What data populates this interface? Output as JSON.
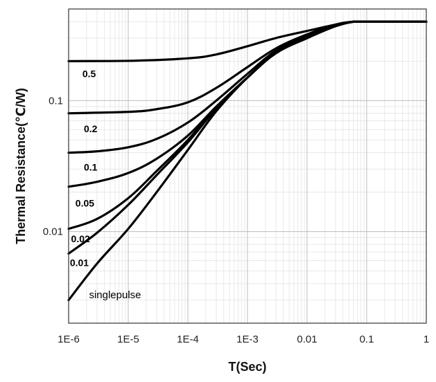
{
  "chart_data": {
    "type": "line",
    "xscale": "log",
    "yscale": "log",
    "xlabel": "T(Sec)",
    "ylabel": "Thermal Resistance(℃/W)",
    "xlim": [
      1e-06,
      1
    ],
    "ylim": [
      0.002,
      0.5
    ],
    "grid": true,
    "x_ticks": [
      {
        "value": 1e-06,
        "label": "1E-6"
      },
      {
        "value": 1e-05,
        "label": "1E-5"
      },
      {
        "value": 0.0001,
        "label": "1E-4"
      },
      {
        "value": 0.001,
        "label": "1E-3"
      },
      {
        "value": 0.01,
        "label": "0.01"
      },
      {
        "value": 0.1,
        "label": "0.1"
      },
      {
        "value": 1,
        "label": "1"
      }
    ],
    "y_ticks": [
      {
        "value": 0.01,
        "label": "0.01"
      },
      {
        "value": 0.1,
        "label": "0.1"
      }
    ],
    "series": [
      {
        "name": "0.5",
        "x": [
          1e-06,
          1e-05,
          0.0001,
          0.0003,
          0.001,
          0.003,
          0.01,
          0.03,
          0.06,
          0.1,
          1
        ],
        "y": [
          0.2,
          0.201,
          0.21,
          0.225,
          0.26,
          0.3,
          0.34,
          0.38,
          0.4,
          0.4,
          0.4
        ]
      },
      {
        "name": "0.2",
        "x": [
          1e-06,
          1e-05,
          3e-05,
          0.0001,
          0.0003,
          0.001,
          0.003,
          0.01,
          0.03,
          0.06,
          0.1,
          1
        ],
        "y": [
          0.08,
          0.082,
          0.086,
          0.097,
          0.125,
          0.18,
          0.25,
          0.32,
          0.38,
          0.4,
          0.4,
          0.4
        ]
      },
      {
        "name": "0.1",
        "x": [
          1e-06,
          3e-06,
          1e-05,
          3e-05,
          0.0001,
          0.0003,
          0.001,
          0.003,
          0.01,
          0.03,
          0.06,
          0.1,
          1
        ],
        "y": [
          0.04,
          0.041,
          0.044,
          0.051,
          0.068,
          0.1,
          0.16,
          0.24,
          0.31,
          0.37,
          0.4,
          0.4,
          0.4
        ]
      },
      {
        "name": "0.05",
        "x": [
          1e-06,
          3e-06,
          1e-05,
          3e-05,
          0.0001,
          0.0003,
          0.001,
          0.003,
          0.01,
          0.03,
          0.06,
          0.1,
          1
        ],
        "y": [
          0.022,
          0.024,
          0.028,
          0.036,
          0.054,
          0.09,
          0.15,
          0.23,
          0.3,
          0.37,
          0.4,
          0.4,
          0.4
        ]
      },
      {
        "name": "0.02",
        "x": [
          1e-06,
          3e-06,
          1e-05,
          3e-05,
          0.0001,
          0.0003,
          0.001,
          0.003,
          0.01,
          0.03,
          0.06,
          0.1,
          1
        ],
        "y": [
          0.0105,
          0.0125,
          0.018,
          0.029,
          0.05,
          0.088,
          0.15,
          0.23,
          0.3,
          0.37,
          0.4,
          0.4,
          0.4
        ]
      },
      {
        "name": "0.01",
        "x": [
          1e-06,
          3e-06,
          1e-05,
          3e-05,
          0.0001,
          0.0003,
          0.001,
          0.003,
          0.01,
          0.03,
          0.06,
          0.1,
          1
        ],
        "y": [
          0.0068,
          0.0098,
          0.016,
          0.027,
          0.048,
          0.087,
          0.15,
          0.23,
          0.3,
          0.37,
          0.4,
          0.4,
          0.4
        ]
      },
      {
        "name": "singlepulse",
        "x": [
          1e-06,
          3e-06,
          1e-05,
          3e-05,
          0.0001,
          0.0003,
          0.001,
          0.003,
          0.01,
          0.03,
          0.06,
          0.1,
          1
        ],
        "y": [
          0.003,
          0.0057,
          0.0105,
          0.02,
          0.042,
          0.083,
          0.15,
          0.23,
          0.3,
          0.37,
          0.4,
          0.4,
          0.4
        ]
      }
    ],
    "annotations": [
      {
        "text": "0.5",
        "x": 1.7e-06,
        "y": 0.16,
        "style": "bold"
      },
      {
        "text": "0.2",
        "x": 1.8e-06,
        "y": 0.061,
        "style": "bold"
      },
      {
        "text": "0.1",
        "x": 1.8e-06,
        "y": 0.031,
        "style": "bold"
      },
      {
        "text": "0.05",
        "x": 1.3e-06,
        "y": 0.0165,
        "style": "bold"
      },
      {
        "text": "0.02",
        "x": 1.1e-06,
        "y": 0.0088,
        "style": "bold"
      },
      {
        "text": "0.01",
        "x": 1.05e-06,
        "y": 0.0058,
        "style": "bold"
      },
      {
        "text": "singlepulse",
        "x": 2.2e-06,
        "y": 0.0033,
        "style": "normal"
      }
    ],
    "colors": {
      "line": "#000000",
      "grid_major": "#bdbdbd",
      "grid_minor": "#e3e3e3",
      "frame": "#333333"
    }
  }
}
